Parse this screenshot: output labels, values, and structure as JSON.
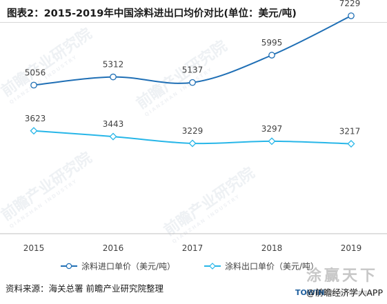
{
  "title": "图表2：2015-2019年中国涂料进出口均价对比(单位：美元/吨)",
  "source": "资料来源：海关总署 前瞻产业研究院整理",
  "credit": "@前瞻经济学人APP",
  "brand": {
    "logo_text": "涂赢天下",
    "towin": "TOWIN",
    "sub": "全面专业的涂料新媒体"
  },
  "watermark": {
    "text": "前瞻产业研究院",
    "sub": "QIANZHAN INDUSTRY"
  },
  "colors": {
    "import": "#1f6fb5",
    "export": "#27b6e8",
    "marker_fill": "#ffffff",
    "axis": "#bfbfbf",
    "text": "#404040"
  },
  "chart_data": {
    "type": "line",
    "categories": [
      "2015",
      "2016",
      "2017",
      "2018",
      "2019"
    ],
    "series": [
      {
        "name": "涂料进口单价（美元/吨）",
        "values": [
          5056,
          5312,
          5137,
          5995,
          7229
        ],
        "marker": "circle",
        "smooth": true
      },
      {
        "name": "涂料出口单价（美元/吨）",
        "values": [
          3623,
          3443,
          3229,
          3297,
          3217
        ],
        "marker": "diamond",
        "smooth": true
      }
    ],
    "grid": false,
    "legend": "bottom",
    "xlabel": "",
    "ylabel": "",
    "yaxis_visible": false
  }
}
